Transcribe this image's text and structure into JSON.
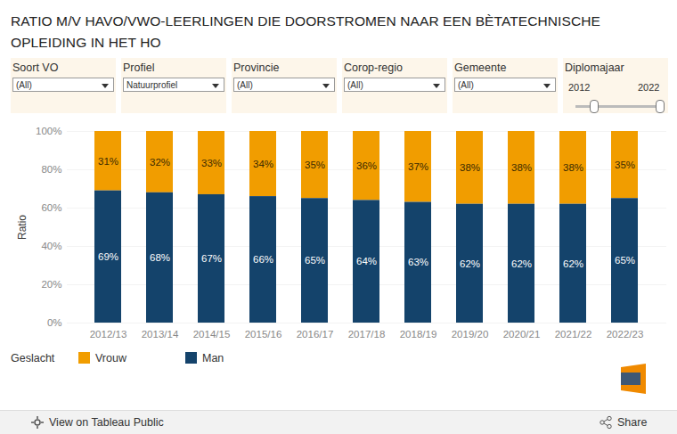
{
  "chart_data": {
    "type": "bar",
    "title": "RATIO M/V HAVO/VWO-LEERLINGEN DIE DOORSTROMEN NAAR EEN BÈTATECHNISCHE OPLEIDING IN HET HO",
    "categories": [
      "2012/13",
      "2013/14",
      "2014/15",
      "2015/16",
      "2016/17",
      "2017/18",
      "2018/19",
      "2019/20",
      "2020/21",
      "2021/22",
      "2022/23"
    ],
    "series": [
      {
        "name": "Vrouw",
        "color": "#f19d00",
        "values": [
          31,
          32,
          33,
          34,
          35,
          36,
          37,
          38,
          38,
          38,
          35
        ],
        "value_labels": [
          "31%",
          "32%",
          "33%",
          "34%",
          "35%",
          "36%",
          "37%",
          "38%",
          "38%",
          "38%",
          "35%"
        ]
      },
      {
        "name": "Man",
        "color": "#14436b",
        "values": [
          69,
          68,
          67,
          66,
          65,
          64,
          63,
          62,
          62,
          62,
          65
        ],
        "value_labels": [
          "69%",
          "68%",
          "67%",
          "66%",
          "65%",
          "64%",
          "63%",
          "62%",
          "62%",
          "62%",
          "65%"
        ]
      }
    ],
    "y_label": "Ratio",
    "ylim": [
      0,
      100
    ],
    "yticks": [
      {
        "value": 0,
        "label": "0%"
      },
      {
        "value": 20,
        "label": "20%"
      },
      {
        "value": 40,
        "label": "40%"
      },
      {
        "value": 60,
        "label": "60%"
      },
      {
        "value": 80,
        "label": "80%"
      },
      {
        "value": 100,
        "label": "100%"
      }
    ],
    "stacked": true,
    "data_labels": true,
    "grid": true,
    "legend": "bottom-left",
    "legend_title": "Geslacht"
  },
  "controls": [
    {
      "label": "Soort VO",
      "value": "(All)"
    },
    {
      "label": "Profiel",
      "value": "Natuurprofiel"
    },
    {
      "label": "Provincie",
      "value": "(All)"
    },
    {
      "label": "Corop-regio",
      "value": "(All)"
    },
    {
      "label": "Gemeente",
      "value": "(All)"
    },
    {
      "label": "Diplomajaar",
      "range": [
        2012,
        2022
      ]
    }
  ],
  "footer": {
    "link": "View on Tableau Public",
    "share": "Share"
  }
}
